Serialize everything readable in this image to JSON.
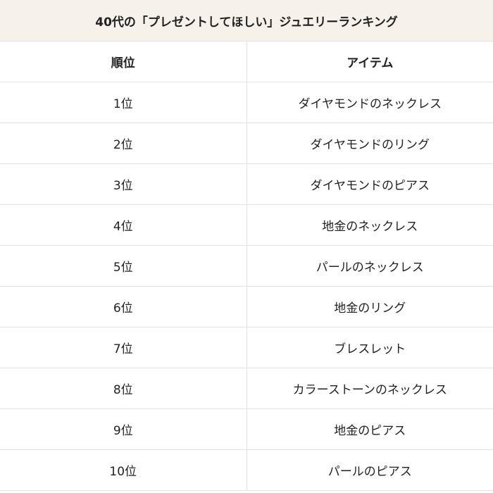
{
  "title": "40代の「プレゼントしてほしい」ジュエリーランキング",
  "headers": {
    "rank": "順位",
    "item": "アイテム"
  },
  "rows": [
    {
      "rank": "1位",
      "item": "ダイヤモンドのネックレス"
    },
    {
      "rank": "2位",
      "item": "ダイヤモンドのリング"
    },
    {
      "rank": "3位",
      "item": "ダイヤモンドのピアス"
    },
    {
      "rank": "4位",
      "item": "地金のネックレス"
    },
    {
      "rank": "5位",
      "item": "パールのネックレス"
    },
    {
      "rank": "6位",
      "item": "地金のリング"
    },
    {
      "rank": "7位",
      "item": "ブレスレット"
    },
    {
      "rank": "8位",
      "item": "カラーストーンのネックレス"
    },
    {
      "rank": "9位",
      "item": "地金のピアス"
    },
    {
      "rank": "10位",
      "item": "パールのピアス"
    }
  ],
  "colors": {
    "title_bg": "#f6f1ea",
    "border": "#e3e3e3"
  }
}
